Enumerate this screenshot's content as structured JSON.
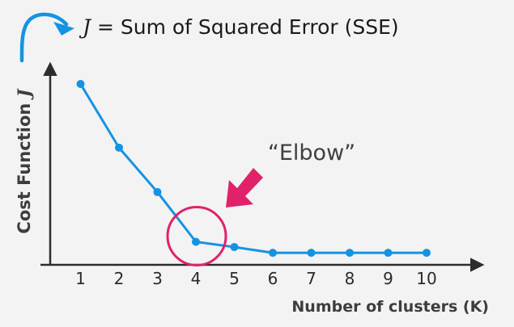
{
  "chart_data": {
    "type": "line",
    "title_var": "J",
    "title_rest": " = Sum of Squared Error (SSE)",
    "ylabel_main": "Cost Function ",
    "ylabel_var": "J",
    "xlabel": "Number of clusters (K)",
    "x": [
      1,
      2,
      3,
      4,
      5,
      6,
      7,
      8,
      9,
      10
    ],
    "y": [
      100,
      63.5,
      38,
      9.5,
      6.5,
      3.2,
      3.2,
      3.2,
      3.2,
      3.2
    ],
    "xlim": [
      0,
      10.6
    ],
    "ylim": [
      0,
      100
    ],
    "grid": false,
    "line_color": "#1593e3",
    "annotation": {
      "text": "“Elbow”",
      "highlight_k": 4,
      "color": "#e0226b"
    }
  }
}
